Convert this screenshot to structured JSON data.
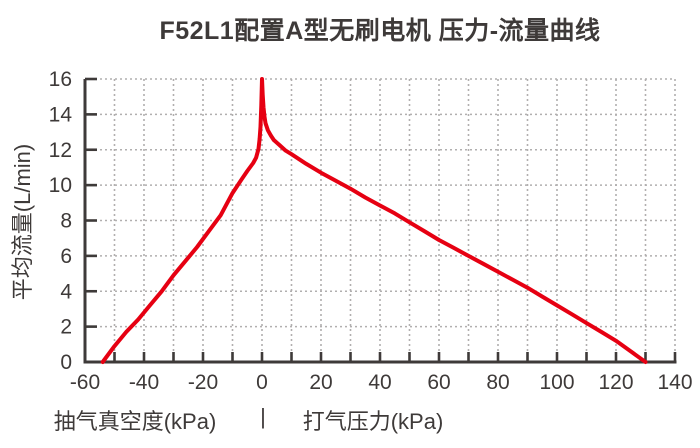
{
  "title": "F52L1配置A型无刷电机 压力-流量曲线",
  "colors": {
    "curve": "#e60012",
    "axis": "#3e3a39",
    "grid": "#b1afaf",
    "text": "#3e3a39",
    "background": "#ffffff"
  },
  "chart_data": {
    "type": "line",
    "title": "F52L1配置A型无刷电机 压力-流量曲线",
    "ylabel": "平均流量(L/min)",
    "xlabel_left": "抽气真空度(kPa)",
    "xlabel_separator": "|",
    "xlabel_right": "打气压力(kPa)",
    "xlim": [
      -60,
      140
    ],
    "ylim": [
      0,
      16
    ],
    "x_tick_labels": [
      "-60",
      "-40",
      "-20",
      "0",
      "20",
      "40",
      "60",
      "80",
      "100",
      "120",
      "140"
    ],
    "y_tick_labels": [
      "0",
      "2",
      "4",
      "6",
      "8",
      "10",
      "12",
      "14",
      "16"
    ],
    "x_minor_tick_step": 10,
    "y_grid_step": 2,
    "grid": "dotted",
    "legend_position": "none",
    "series": [
      {
        "name": "压力-流量曲线",
        "color": "#e60012",
        "points": [
          [
            -54,
            0
          ],
          [
            -50,
            0.9
          ],
          [
            -46,
            1.7
          ],
          [
            -42,
            2.4
          ],
          [
            -38,
            3.2
          ],
          [
            -34,
            4.0
          ],
          [
            -30,
            4.9
          ],
          [
            -26,
            5.7
          ],
          [
            -22,
            6.5
          ],
          [
            -18,
            7.4
          ],
          [
            -14,
            8.3
          ],
          [
            -10,
            9.55
          ],
          [
            -7,
            10.3
          ],
          [
            -5,
            10.8
          ],
          [
            -3,
            11.25
          ],
          [
            -2,
            11.55
          ],
          [
            -1.2,
            12.05
          ],
          [
            -0.8,
            12.6
          ],
          [
            -0.5,
            13.3
          ],
          [
            -0.25,
            14.5
          ],
          [
            0,
            16
          ],
          [
            0.25,
            15.1
          ],
          [
            0.5,
            14.4
          ],
          [
            0.8,
            13.9
          ],
          [
            1.2,
            13.5
          ],
          [
            2,
            13.1
          ],
          [
            3,
            12.8
          ],
          [
            4,
            12.55
          ],
          [
            5,
            12.4
          ],
          [
            6,
            12.25
          ],
          [
            8,
            11.95
          ],
          [
            10,
            11.75
          ],
          [
            15,
            11.2
          ],
          [
            20,
            10.7
          ],
          [
            25,
            10.25
          ],
          [
            30,
            9.8
          ],
          [
            35,
            9.3
          ],
          [
            40,
            8.85
          ],
          [
            45,
            8.4
          ],
          [
            50,
            7.9
          ],
          [
            55,
            7.4
          ],
          [
            60,
            6.9
          ],
          [
            65,
            6.45
          ],
          [
            70,
            6.0
          ],
          [
            75,
            5.55
          ],
          [
            80,
            5.1
          ],
          [
            85,
            4.65
          ],
          [
            90,
            4.2
          ],
          [
            95,
            3.7
          ],
          [
            100,
            3.2
          ],
          [
            105,
            2.7
          ],
          [
            110,
            2.2
          ],
          [
            115,
            1.7
          ],
          [
            120,
            1.2
          ],
          [
            125,
            0.6
          ],
          [
            130,
            0
          ]
        ]
      }
    ]
  }
}
